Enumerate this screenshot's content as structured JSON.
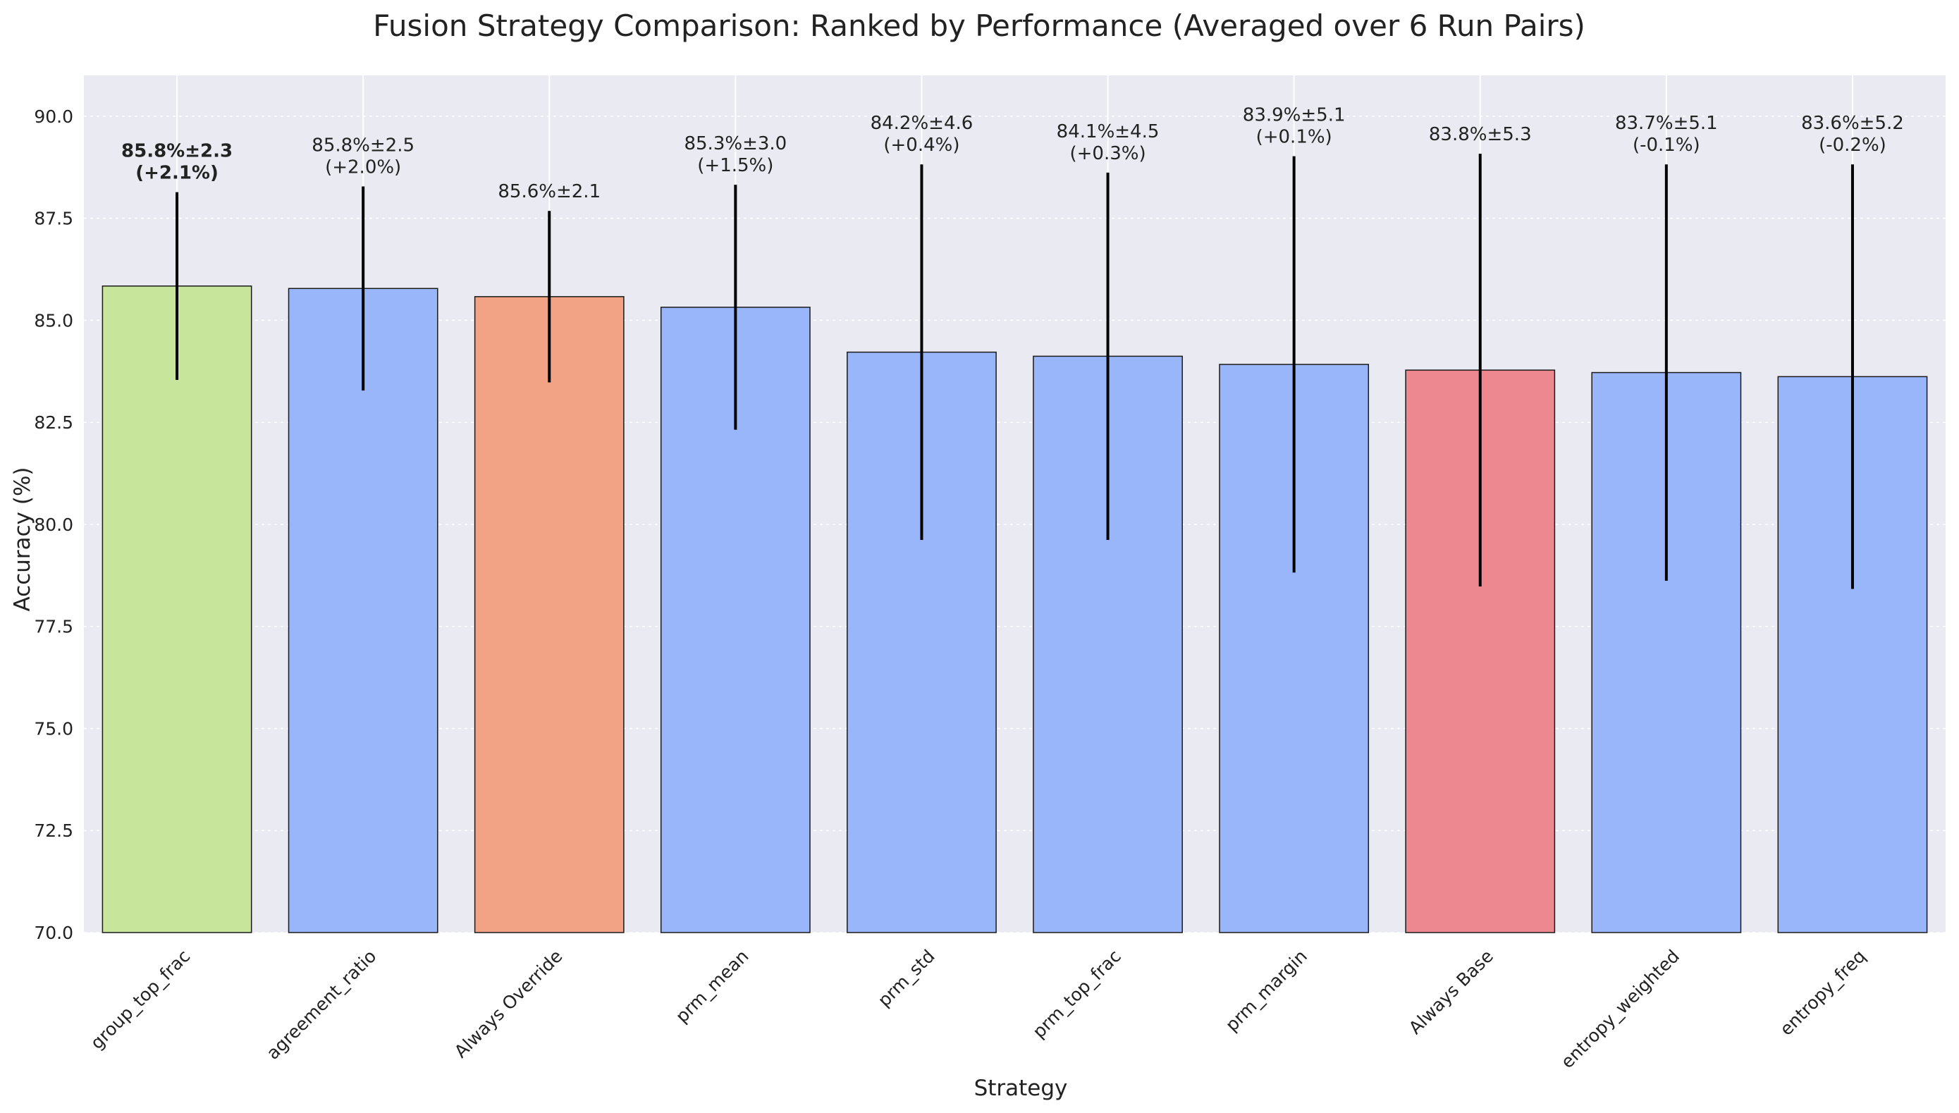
{
  "chart_data": {
    "type": "bar",
    "title": "Fusion Strategy Comparison: Ranked by Performance (Averaged over 6 Run Pairs)",
    "xlabel": "Strategy",
    "ylabel": "Accuracy (%)",
    "ylim": [
      70,
      91
    ],
    "yticks": [
      "70.0",
      "72.5",
      "75.0",
      "77.5",
      "80.0",
      "82.5",
      "85.0",
      "87.5",
      "90.0"
    ],
    "grid": true,
    "categories": [
      "group_top_frac",
      "agreement_ratio",
      "Always Override",
      "prm_mean",
      "prm_std",
      "prm_top_frac",
      "prm_margin",
      "Always Base",
      "entropy_weighted",
      "entropy_freq"
    ],
    "values": [
      85.84,
      85.78,
      85.58,
      85.32,
      84.22,
      84.12,
      83.92,
      83.78,
      83.72,
      83.62
    ],
    "errors": [
      2.3,
      2.5,
      2.1,
      3.0,
      4.6,
      4.5,
      5.1,
      5.3,
      5.1,
      5.2
    ],
    "bar_labels": [
      [
        "85.8%±2.3",
        "(+2.1%)"
      ],
      [
        "85.8%±2.5",
        "(+2.0%)"
      ],
      [
        "85.6%±2.1"
      ],
      [
        "85.3%±3.0",
        "(+1.5%)"
      ],
      [
        "84.2%±4.6",
        "(+0.4%)"
      ],
      [
        "84.1%±4.5",
        "(+0.3%)"
      ],
      [
        "83.9%±5.1",
        "(+0.1%)"
      ],
      [
        "83.8%±5.3"
      ],
      [
        "83.7%±5.1",
        "(-0.1%)"
      ],
      [
        "83.6%±5.2",
        "(-0.2%)"
      ]
    ],
    "bold_label_index": 0,
    "colors": [
      "#c8e69b",
      "#99b6fb",
      "#f2a386",
      "#99b6fb",
      "#99b6fb",
      "#99b6fb",
      "#99b6fb",
      "#ed8890",
      "#99b6fb",
      "#99b6fb"
    ],
    "plot_background": "#eaeaf2"
  }
}
